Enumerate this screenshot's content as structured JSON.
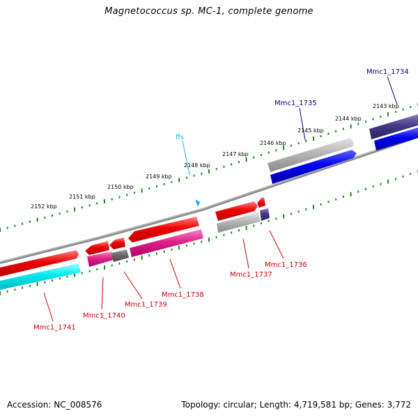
{
  "title": "Magnetococcus sp. MC-1, complete genome",
  "footer": {
    "accession": "Accession: NC_008576",
    "topology": "Topology: circular; Length: 4,719,581 bp; Genes: 3,772"
  },
  "scale_labels": [
    "2152 kbp",
    "2151 kbp",
    "2150 kbp",
    "2149 kbp",
    "2148 kbp",
    "2147 kbp",
    "2146 kbp",
    "2145 kbp",
    "2144 kbp",
    "2143 kbp"
  ],
  "gene_labels": [
    {
      "name": "Mmc1_1734",
      "color": "#00008b"
    },
    {
      "name": "Mmc1_1735",
      "color": "#00008b"
    },
    {
      "name": "ffs",
      "color": "#1ab2e6"
    },
    {
      "name": "Mmc1_1736",
      "color": "#cc0000"
    },
    {
      "name": "Mmc1_1737",
      "color": "#cc0000"
    },
    {
      "name": "Mmc1_1738",
      "color": "#cc0000"
    },
    {
      "name": "Mmc1_1739",
      "color": "#cc0000"
    },
    {
      "name": "Mmc1_1740",
      "color": "#cc0000"
    },
    {
      "name": "Mmc1_1741",
      "color": "#cc0000"
    }
  ],
  "colors": {
    "backbone": "#888888",
    "tick": "#1a8a1a",
    "red": "#ee0000",
    "blue": "#0000ee",
    "navy": "#443a88",
    "gray": "#b5b5b5",
    "darkgray": "#6a6a6a",
    "magenta": "#e0208a",
    "cyan": "#00e8ee",
    "sky": "#22aaff"
  }
}
